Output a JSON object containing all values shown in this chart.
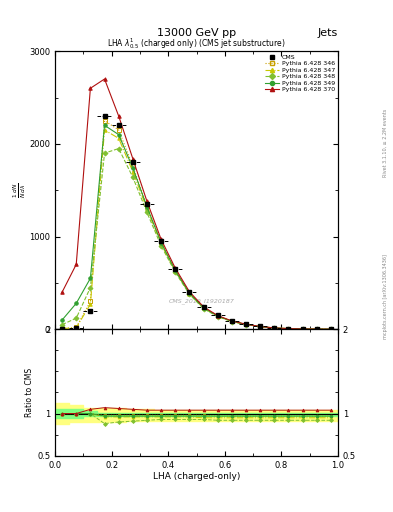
{
  "title_top": "13000 GeV pp",
  "title_right": "Jets",
  "plot_title": "LHA $\\lambda^{1}_{0.5}$ (charged only) (CMS jet substructure)",
  "watermark": "CMS_2019_I1920187",
  "rivet_label": "Rivet 3.1.10, ≥ 2.2M events",
  "mcplots_label": "mcplots.cern.ch [arXiv:1306.3436]",
  "xlabel": "LHA (charged-only)",
  "ylabel": "$\\frac{1}{N}\\frac{dN}{d\\lambda}$",
  "ylabel_ratio": "Ratio to CMS",
  "xlim": [
    0.0,
    1.0
  ],
  "ylim_main": [
    0,
    3000
  ],
  "ylim_ratio": [
    0.5,
    2.0
  ],
  "lha_x": [
    0.025,
    0.075,
    0.125,
    0.175,
    0.225,
    0.275,
    0.325,
    0.375,
    0.425,
    0.475,
    0.525,
    0.575,
    0.625,
    0.675,
    0.725,
    0.775,
    0.825,
    0.875,
    0.925,
    0.975
  ],
  "cms_y": [
    5,
    10,
    200,
    2300,
    2200,
    1800,
    1350,
    950,
    650,
    400,
    240,
    150,
    90,
    55,
    30,
    15,
    8,
    4,
    2,
    1
  ],
  "cms_yerr": [
    2,
    3,
    30,
    100,
    100,
    80,
    60,
    45,
    30,
    20,
    12,
    8,
    5,
    3,
    2,
    1,
    0.5,
    0.3,
    0.2,
    0.1
  ],
  "py346_y": [
    8,
    20,
    300,
    2250,
    2150,
    1760,
    1330,
    940,
    640,
    395,
    235,
    145,
    88,
    53,
    29,
    14,
    7,
    3.5,
    1.8,
    0.9
  ],
  "py347_y": [
    7,
    18,
    270,
    2150,
    2060,
    1700,
    1300,
    920,
    625,
    385,
    228,
    140,
    85,
    52,
    28,
    14,
    7,
    3.4,
    1.7,
    0.9
  ],
  "py348_y": [
    50,
    120,
    450,
    1900,
    1950,
    1640,
    1260,
    900,
    615,
    378,
    222,
    136,
    83,
    50,
    28,
    13,
    6.5,
    3.2,
    1.6,
    0.8
  ],
  "py349_y": [
    100,
    280,
    550,
    2200,
    2100,
    1740,
    1320,
    935,
    635,
    390,
    232,
    142,
    87,
    52,
    29,
    14,
    7,
    3.5,
    1.8,
    0.9
  ],
  "py370_y": [
    400,
    700,
    2600,
    2700,
    2300,
    1840,
    1380,
    970,
    660,
    405,
    242,
    148,
    90,
    55,
    30,
    15,
    7.5,
    3.7,
    1.9,
    0.95
  ],
  "ratio346": [
    1.0,
    1.0,
    1.0,
    0.98,
    0.98,
    0.98,
    0.98,
    0.98,
    0.98,
    0.98,
    0.98,
    0.97,
    0.97,
    0.97,
    0.97,
    0.97,
    0.97,
    0.97,
    0.97,
    0.97
  ],
  "ratio347": [
    1.0,
    1.0,
    1.0,
    0.96,
    0.96,
    0.96,
    0.96,
    0.96,
    0.96,
    0.96,
    0.95,
    0.95,
    0.95,
    0.95,
    0.95,
    0.95,
    0.95,
    0.95,
    0.95,
    0.95
  ],
  "ratio348": [
    1.0,
    1.0,
    1.0,
    0.88,
    0.9,
    0.91,
    0.92,
    0.93,
    0.93,
    0.93,
    0.93,
    0.92,
    0.92,
    0.92,
    0.92,
    0.92,
    0.92,
    0.92,
    0.92,
    0.92
  ],
  "ratio349": [
    1.0,
    1.0,
    1.0,
    0.97,
    0.97,
    0.97,
    0.97,
    0.97,
    0.97,
    0.97,
    0.97,
    0.97,
    0.97,
    0.97,
    0.97,
    0.97,
    0.97,
    0.97,
    0.97,
    0.97
  ],
  "ratio370": [
    1.0,
    1.0,
    1.05,
    1.07,
    1.06,
    1.05,
    1.04,
    1.04,
    1.04,
    1.04,
    1.04,
    1.04,
    1.04,
    1.04,
    1.04,
    1.04,
    1.04,
    1.04,
    1.04,
    1.04
  ],
  "band_green_lo": [
    0.95,
    0.95,
    0.97,
    0.97,
    0.97,
    0.97,
    0.97,
    0.97,
    0.97,
    0.97,
    0.97,
    0.97,
    0.97,
    0.97,
    0.97,
    0.97,
    0.97,
    0.97,
    0.97,
    0.97
  ],
  "band_green_hi": [
    1.05,
    1.05,
    1.03,
    1.01,
    1.01,
    1.01,
    1.01,
    1.01,
    1.01,
    1.01,
    1.01,
    1.01,
    1.01,
    1.01,
    1.01,
    1.01,
    1.01,
    1.01,
    1.01,
    1.01
  ],
  "band_yellow_lo": [
    0.88,
    0.9,
    0.9,
    0.9,
    0.9,
    0.91,
    0.91,
    0.91,
    0.91,
    0.91,
    0.91,
    0.91,
    0.91,
    0.91,
    0.91,
    0.91,
    0.91,
    0.91,
    0.91,
    0.91
  ],
  "band_yellow_hi": [
    1.12,
    1.1,
    1.07,
    1.07,
    1.06,
    1.05,
    1.05,
    1.04,
    1.04,
    1.04,
    1.04,
    1.04,
    1.04,
    1.04,
    1.04,
    1.04,
    1.04,
    1.04,
    1.04,
    1.04
  ],
  "color_cms": "#000000",
  "color_346": "#c8a000",
  "color_347": "#c8c800",
  "color_348": "#80c030",
  "color_349": "#30a030",
  "color_370": "#b01010",
  "bg_color": "#ffffff"
}
